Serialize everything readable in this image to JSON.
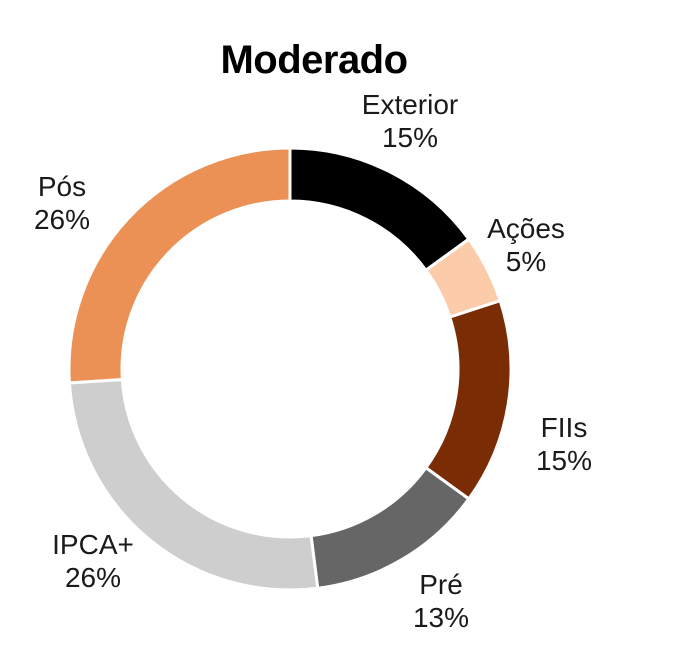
{
  "chart_data": {
    "type": "pie",
    "title": "Moderado",
    "categories": [
      "Exterior",
      "Ações",
      "FIIs",
      "Pré",
      "IPCA+",
      "Pós"
    ],
    "values": [
      15,
      5,
      15,
      13,
      26,
      26
    ],
    "value_labels": [
      "15%",
      "5%",
      "15%",
      "13%",
      "26%",
      "26%"
    ],
    "colors": [
      "#000000",
      "#fccbaa",
      "#7a2c05",
      "#666666",
      "#cecece",
      "#ec9156"
    ],
    "donut": true,
    "start_angle": "top, clockwise",
    "legend": "none"
  }
}
